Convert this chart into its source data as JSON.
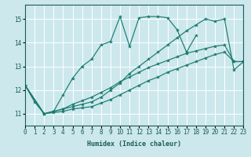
{
  "xlabel": "Humidex (Indice chaleur)",
  "background_color": "#cce8ed",
  "line_color": "#1a7a6e",
  "grid_color": "#ffffff",
  "xlim": [
    0,
    23
  ],
  "ylim": [
    10.5,
    15.6
  ],
  "yticks": [
    11,
    12,
    13,
    14,
    15
  ],
  "xticks": [
    0,
    1,
    2,
    3,
    4,
    5,
    6,
    7,
    8,
    9,
    10,
    11,
    12,
    13,
    14,
    15,
    16,
    17,
    18,
    19,
    20,
    21,
    22,
    23
  ],
  "series": [
    {
      "x": [
        0,
        1,
        2,
        3,
        4,
        5,
        6,
        7,
        8,
        9,
        10,
        11,
        12,
        13,
        14,
        15,
        16,
        17,
        18,
        19,
        20,
        21,
        22,
        23
      ],
      "y": [
        12.2,
        11.5,
        11.0,
        11.1,
        11.8,
        12.5,
        13.0,
        13.3,
        13.9,
        14.05,
        15.1,
        13.85,
        15.05,
        15.1,
        15.1,
        15.05,
        14.55,
        13.6,
        14.3,
        null,
        null,
        null,
        null,
        null
      ]
    },
    {
      "x": [
        0,
        2,
        3,
        4,
        5,
        6,
        7,
        8,
        9,
        10,
        11,
        12,
        13,
        14,
        15,
        16,
        17,
        18,
        19,
        20,
        21,
        22,
        23
      ],
      "y": [
        12.2,
        11.0,
        11.1,
        11.2,
        11.3,
        11.4,
        11.5,
        11.7,
        12.0,
        12.3,
        12.7,
        13.0,
        13.3,
        13.6,
        13.9,
        14.2,
        14.5,
        14.75,
        15.0,
        14.9,
        15.0,
        12.85,
        13.2
      ]
    },
    {
      "x": [
        0,
        2,
        3,
        4,
        5,
        6,
        7,
        8,
        9,
        10,
        11,
        12,
        13,
        14,
        15,
        16,
        17,
        18,
        19,
        20,
        21,
        22,
        23
      ],
      "y": [
        12.2,
        11.0,
        11.05,
        11.1,
        11.2,
        11.25,
        11.3,
        11.45,
        11.6,
        11.8,
        12.0,
        12.2,
        12.4,
        12.55,
        12.75,
        12.9,
        13.05,
        13.2,
        13.35,
        13.5,
        13.6,
        13.2,
        13.2
      ]
    },
    {
      "x": [
        0,
        2,
        3,
        4,
        5,
        6,
        7,
        8,
        9,
        10,
        11,
        12,
        13,
        14,
        15,
        16,
        17,
        18,
        19,
        20,
        21,
        22,
        23
      ],
      "y": [
        12.2,
        11.0,
        11.1,
        11.2,
        11.4,
        11.55,
        11.7,
        11.9,
        12.1,
        12.35,
        12.55,
        12.75,
        12.95,
        13.1,
        13.25,
        13.4,
        13.55,
        13.65,
        13.75,
        13.85,
        13.9,
        13.2,
        13.2
      ]
    }
  ]
}
